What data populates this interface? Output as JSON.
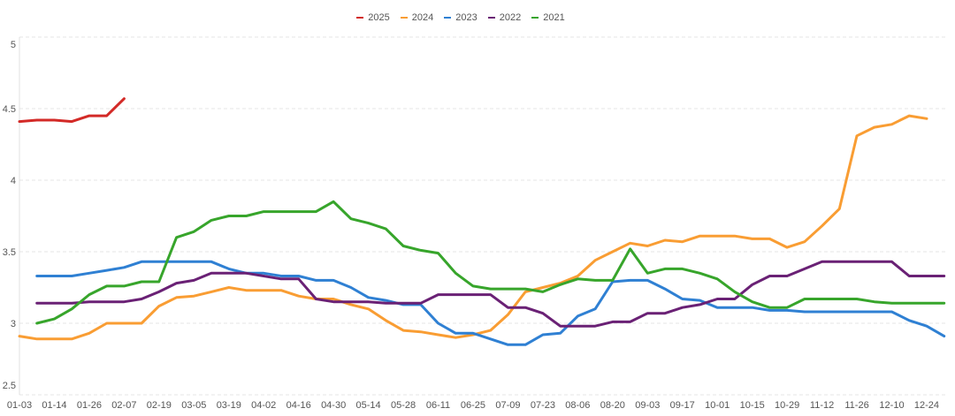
{
  "chart_data": {
    "type": "line",
    "legend": "top-center",
    "grid": true,
    "ylim": [
      2.5,
      5
    ],
    "yticks": [
      2.5,
      3,
      3.5,
      4,
      4.5,
      5
    ],
    "categories": [
      "01-03",
      "",
      "01-14",
      "",
      "01-26",
      "",
      "02-07",
      "",
      "02-19",
      "",
      "03-05",
      "",
      "03-19",
      "",
      "04-02",
      "",
      "04-16",
      "",
      "04-30",
      "",
      "05-14",
      "",
      "05-28",
      "",
      "06-11",
      "",
      "06-25",
      "",
      "07-09",
      "",
      "07-23",
      "",
      "08-06",
      "",
      "08-20",
      "",
      "09-03",
      "",
      "09-17",
      "",
      "10-01",
      "",
      "10-15",
      "",
      "10-29",
      "",
      "11-12",
      "",
      "11-26",
      "",
      "12-10",
      "",
      "12-24",
      ""
    ],
    "series": [
      {
        "name": "2025",
        "color": "#d32a27",
        "values": [
          4.41,
          4.42,
          4.42,
          4.41,
          4.45,
          4.45,
          4.57,
          null,
          null,
          null,
          null,
          null,
          null,
          null,
          null,
          null,
          null,
          null,
          null,
          null,
          null,
          null,
          null,
          null,
          null,
          null,
          null,
          null,
          null,
          null,
          null,
          null,
          null,
          null,
          null,
          null,
          null,
          null,
          null,
          null,
          null,
          null,
          null,
          null,
          null,
          null,
          null,
          null,
          null,
          null,
          null,
          null,
          null,
          null
        ]
      },
      {
        "name": "2024",
        "color": "#f99d33",
        "values": [
          2.91,
          2.89,
          2.89,
          2.89,
          2.93,
          3.0,
          3.0,
          3.0,
          3.12,
          3.18,
          3.19,
          3.22,
          3.25,
          3.23,
          3.23,
          3.23,
          3.19,
          3.17,
          3.17,
          3.13,
          3.1,
          3.02,
          2.95,
          2.94,
          2.92,
          2.9,
          2.92,
          2.95,
          3.06,
          3.22,
          3.25,
          3.28,
          3.33,
          3.44,
          3.5,
          3.56,
          3.54,
          3.58,
          3.57,
          3.61,
          3.61,
          3.61,
          3.59,
          3.59,
          3.53,
          3.57,
          3.68,
          3.8,
          4.31,
          4.37,
          4.39,
          4.45,
          4.43,
          null
        ]
      },
      {
        "name": "2023",
        "color": "#2f80d3",
        "values": [
          null,
          3.33,
          3.33,
          3.33,
          3.35,
          3.37,
          3.39,
          3.43,
          3.43,
          3.43,
          3.43,
          3.43,
          3.38,
          3.35,
          3.35,
          3.33,
          3.33,
          3.3,
          3.3,
          3.25,
          3.18,
          3.16,
          3.13,
          3.13,
          3.0,
          2.93,
          2.93,
          2.89,
          2.85,
          2.85,
          2.92,
          2.93,
          3.05,
          3.1,
          3.29,
          3.3,
          3.3,
          3.24,
          3.17,
          3.16,
          3.11,
          3.11,
          3.11,
          3.09,
          3.09,
          3.08,
          3.08,
          3.08,
          3.08,
          3.08,
          3.08,
          3.02,
          2.98,
          2.91
        ]
      },
      {
        "name": "2022",
        "color": "#6a2175",
        "values": [
          null,
          3.14,
          3.14,
          3.14,
          3.15,
          3.15,
          3.15,
          3.17,
          3.22,
          3.28,
          3.3,
          3.35,
          3.35,
          3.35,
          3.33,
          3.31,
          3.31,
          3.17,
          3.15,
          3.15,
          3.15,
          3.14,
          3.14,
          3.14,
          3.2,
          3.2,
          3.2,
          3.2,
          3.11,
          3.11,
          3.07,
          2.98,
          2.98,
          2.98,
          3.01,
          3.01,
          3.07,
          3.07,
          3.11,
          3.13,
          3.17,
          3.17,
          3.27,
          3.33,
          3.33,
          3.38,
          3.43,
          3.43,
          3.43,
          3.43,
          3.43,
          3.33,
          3.33,
          3.33
        ]
      },
      {
        "name": "2021",
        "color": "#37a52b",
        "values": [
          null,
          3.0,
          3.03,
          3.1,
          3.2,
          3.26,
          3.26,
          3.29,
          3.29,
          3.6,
          3.64,
          3.72,
          3.75,
          3.75,
          3.78,
          3.78,
          3.78,
          3.78,
          3.85,
          3.73,
          3.7,
          3.66,
          3.54,
          3.51,
          3.49,
          3.35,
          3.26,
          3.24,
          3.24,
          3.24,
          3.22,
          3.27,
          3.31,
          3.3,
          3.3,
          3.52,
          3.35,
          3.38,
          3.38,
          3.35,
          3.31,
          3.22,
          3.15,
          3.11,
          3.11,
          3.17,
          3.17,
          3.17,
          3.17,
          3.15,
          3.14,
          3.14,
          3.14,
          3.14
        ]
      }
    ]
  }
}
